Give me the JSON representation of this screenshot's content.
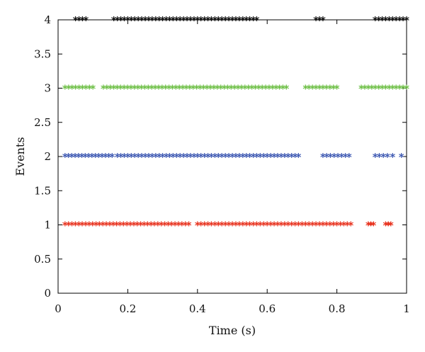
{
  "chart_data": {
    "type": "scatter",
    "xlabel": "Time (s)",
    "ylabel": "Events",
    "xlim": [
      0,
      1
    ],
    "ylim": [
      0,
      4
    ],
    "xticks": [
      0,
      0.2,
      0.4,
      0.6,
      0.8,
      1
    ],
    "xtick_labels": [
      "0",
      "0.2",
      "0.4",
      "0.6",
      "0.8",
      "1"
    ],
    "yticks": [
      0,
      0.5,
      1,
      1.5,
      2,
      2.5,
      3,
      3.5,
      4
    ],
    "ytick_labels": [
      "0",
      "0.5",
      "1",
      "1.5",
      "2",
      "2.5",
      "3",
      "3.5",
      "4"
    ],
    "grid": false,
    "marker": "asterisk",
    "series": [
      {
        "color": "#e8321e",
        "y": 1,
        "segments": [
          [
            0.02,
            0.375
          ],
          [
            0.4,
            0.84
          ],
          [
            0.89,
            0.905
          ],
          [
            0.94,
            0.955
          ]
        ]
      },
      {
        "color": "#3f5ab3",
        "y": 2,
        "segments": [
          [
            0.02,
            0.155
          ],
          [
            0.17,
            0.69
          ],
          [
            0.76,
            0.835
          ],
          [
            0.91,
            0.945
          ],
          [
            0.96,
            0.96
          ],
          [
            0.985,
            0.985
          ]
        ]
      },
      {
        "color": "#6dbf45",
        "y": 3,
        "segments": [
          [
            0.02,
            0.1
          ],
          [
            0.13,
            0.655
          ],
          [
            0.71,
            0.8
          ],
          [
            0.87,
            1.0
          ]
        ]
      },
      {
        "color": "#111111",
        "y": 4,
        "segments": [
          [
            0.05,
            0.08
          ],
          [
            0.16,
            0.57
          ],
          [
            0.74,
            0.76
          ],
          [
            0.91,
            1.0
          ]
        ]
      }
    ]
  }
}
